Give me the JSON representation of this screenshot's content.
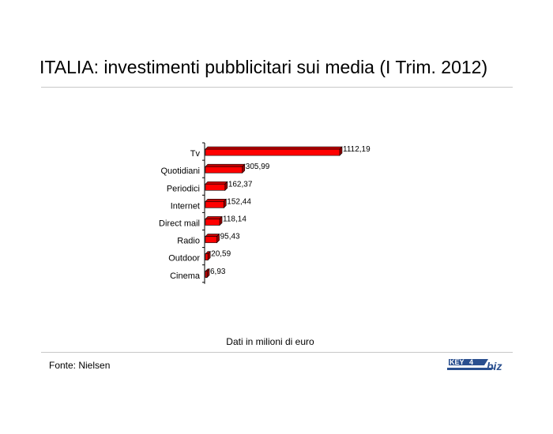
{
  "title": "ITALIA: investimenti pubblicitari sui media (I Trim. 2012)",
  "note": "Dati in milioni di euro",
  "source": "Fonte: Nielsen",
  "logo_text": "KEY4biz",
  "colors": {
    "bar": "#ff0000",
    "bar_side": "#990000",
    "bar_top": "#cc0000",
    "rule": "#c8c8c8"
  },
  "chart_data": {
    "type": "bar",
    "orientation": "horizontal",
    "categories": [
      "Tv",
      "Quotidiani",
      "Periodici",
      "Internet",
      "Direct mail",
      "Radio",
      "Outdoor",
      "Cinema"
    ],
    "values": [
      1112.19,
      305.99,
      162.37,
      152.44,
      118.14,
      95.43,
      20.59,
      6.93
    ],
    "value_labels": [
      "1112,19",
      "305,99",
      "162,37",
      "152,44",
      "118,14",
      "95,43",
      "20,59",
      "6,93"
    ],
    "title": "",
    "xlabel": "",
    "ylabel": "",
    "grid": false,
    "legend": "none"
  }
}
